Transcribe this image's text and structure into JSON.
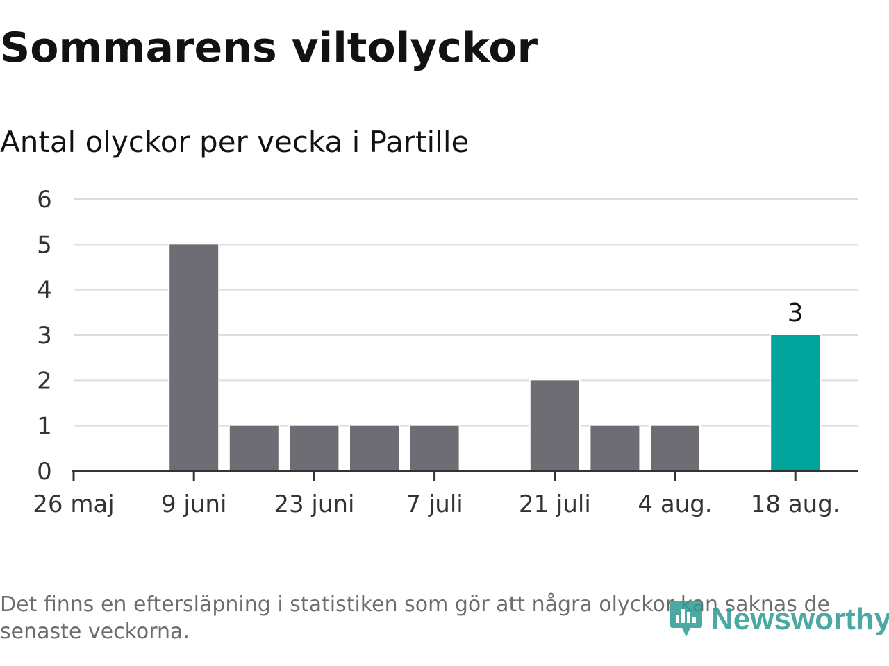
{
  "title": "Sommarens viltolyckor",
  "subtitle": "Antal olyckor per vecka i Partille",
  "footnote": "Det finns en eftersläpning i statistiken som gör att några olyckor kan saknas de senaste veckorna.",
  "brand": {
    "name": "Newsworthy",
    "icon": "newsworthy-logo-icon",
    "color": "#2d9a93"
  },
  "colors": {
    "bar": "#6e6d73",
    "highlight": "#00a49a",
    "grid": "#dddddd",
    "axis": "#333333"
  },
  "chart_data": {
    "type": "bar",
    "title": "Sommarens viltolyckor",
    "subtitle": "Antal olyckor per vecka i Partille",
    "xlabel": "",
    "ylabel": "",
    "x_tick_labels": [
      "26 maj",
      "9 juni",
      "23 juni",
      "7 juli",
      "21 juli",
      "4 aug.",
      "18 aug."
    ],
    "categories": [
      "26 maj",
      "2 juni",
      "9 juni",
      "16 juni",
      "23 juni",
      "30 juni",
      "7 juli",
      "14 juli",
      "21 juli",
      "28 juli",
      "4 aug.",
      "11 aug.",
      "18 aug."
    ],
    "values": [
      0,
      0,
      5,
      1,
      1,
      1,
      1,
      0,
      2,
      1,
      1,
      0,
      3
    ],
    "highlight_index": 12,
    "highlight_label": "3",
    "ylim": [
      0,
      6
    ],
    "yticks": [
      0,
      1,
      2,
      3,
      4,
      5,
      6
    ],
    "grid": true,
    "legend": "none"
  }
}
